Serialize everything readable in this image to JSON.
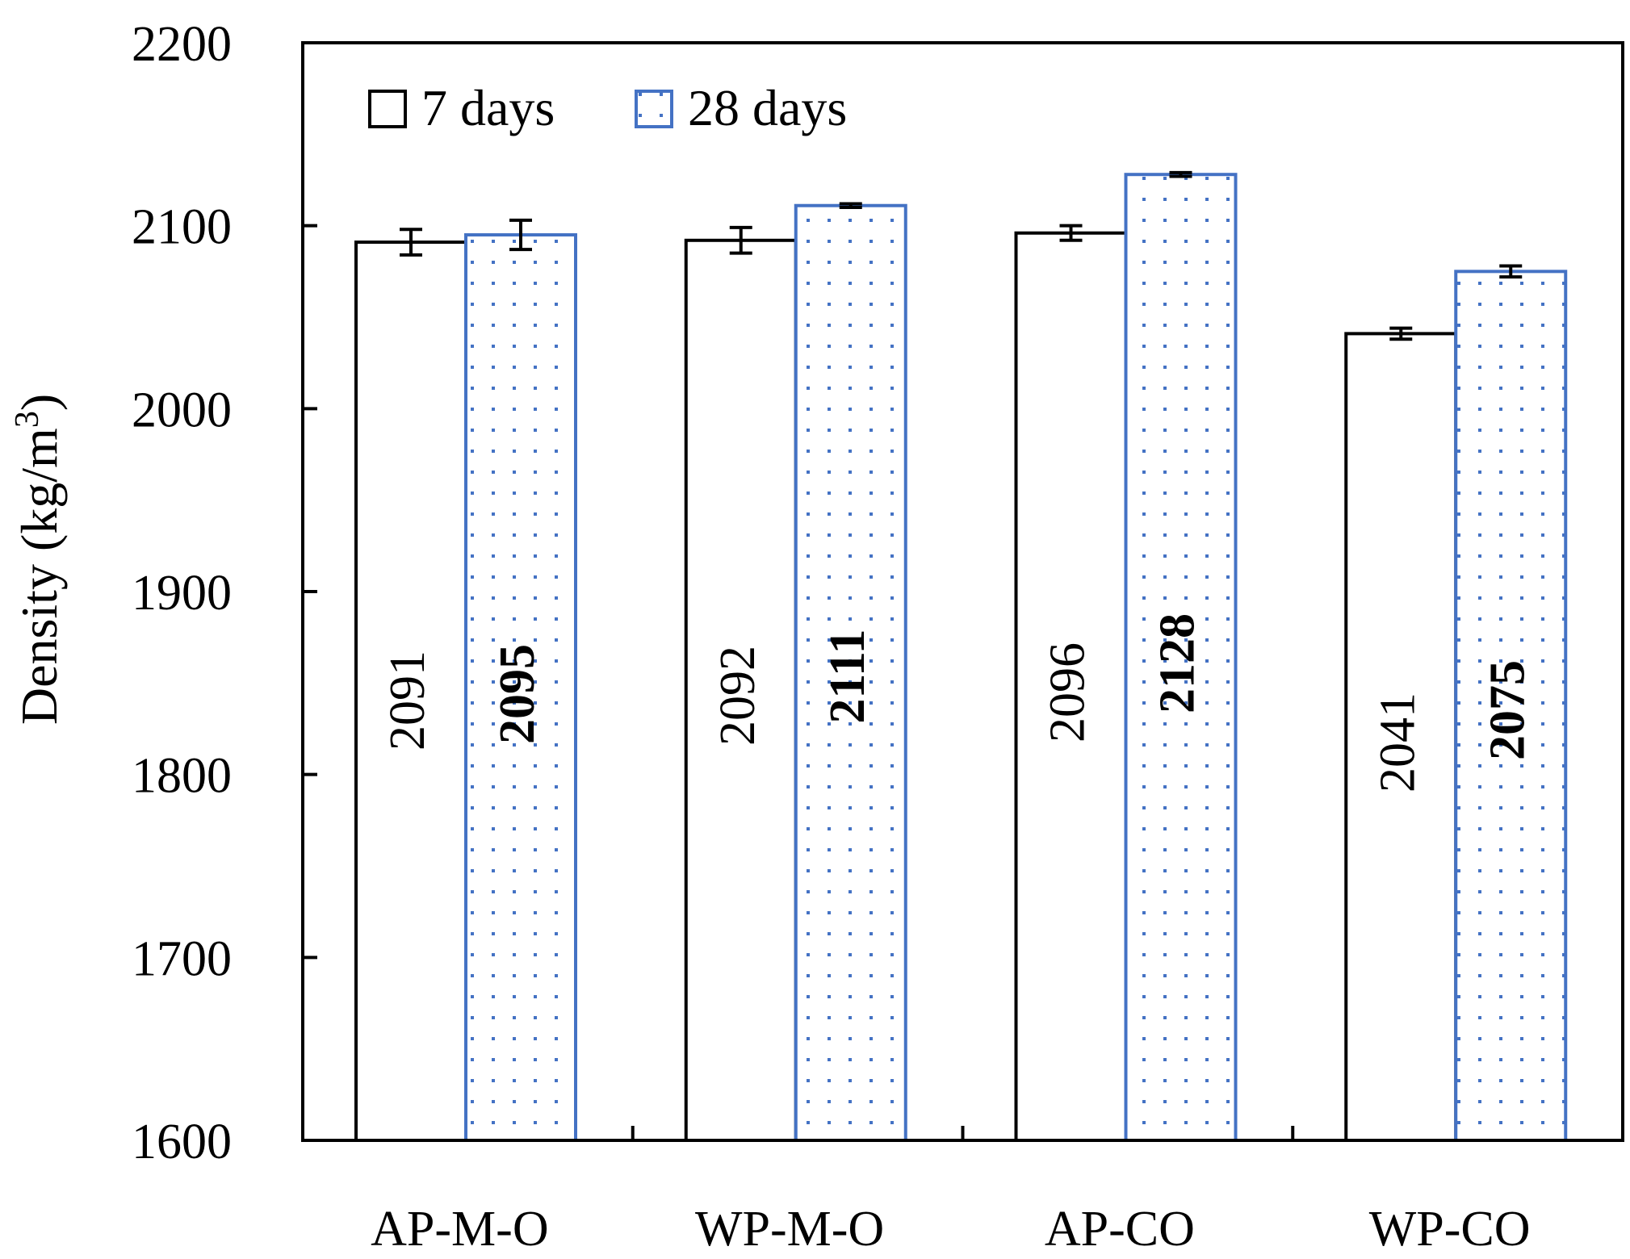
{
  "chart_data": {
    "type": "bar",
    "title": "",
    "xlabel": "",
    "ylabel": "Density (kg/m3)",
    "ylabel_parts": {
      "main": "Density (kg/m",
      "sup": "3",
      "close": ")"
    },
    "ylim": [
      1600,
      2200
    ],
    "yticks": [
      "1600",
      "1700",
      "1800",
      "1900",
      "2000",
      "2100",
      "2200"
    ],
    "categories": [
      "AP-M-O",
      "WP-M-O",
      "AP-CO",
      "WP-CO"
    ],
    "series": [
      {
        "name": "7 days",
        "values": [
          2091,
          2092,
          2096,
          2041
        ],
        "errors": [
          7,
          7,
          4,
          3
        ],
        "labels": [
          "2091",
          "2092",
          "2096",
          "2041"
        ],
        "label_bold": false,
        "fill": "#ffffff",
        "stroke": "#000000",
        "pattern": "none"
      },
      {
        "name": "28 days",
        "values": [
          2095,
          2111,
          2128,
          2075
        ],
        "errors": [
          8,
          1,
          1,
          3
        ],
        "labels": [
          "2095",
          "2111",
          "2128",
          "2075"
        ],
        "label_bold": true,
        "fill": "#ffffff",
        "stroke": "#4472C4",
        "pattern": "dots"
      }
    ],
    "legend": {
      "position": "top-left",
      "orientation": "horizontal"
    },
    "grid": false
  }
}
